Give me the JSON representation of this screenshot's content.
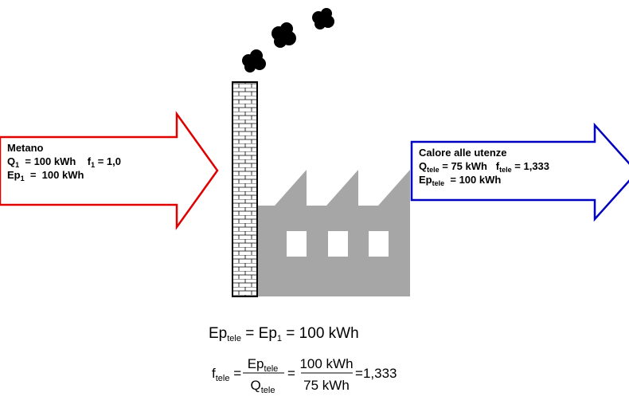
{
  "left_arrow": {
    "title": "Metano",
    "lines": [
      [
        {
          "base": "Q",
          "sub": "1"
        },
        {
          "base": "  = 100 kWh    f",
          "sub": "1"
        },
        {
          "base": " = 1,0"
        }
      ],
      [
        {
          "base": "Ep",
          "sub": "1"
        },
        {
          "base": "  =  100 kWh"
        }
      ]
    ]
  },
  "right_arrow": {
    "title": "Calore alle utenze",
    "lines": [
      [
        {
          "base": "Q",
          "sub": "tele"
        },
        {
          "base": " = 75 kWh   f",
          "sub": "tele"
        },
        {
          "base": " = 1,333"
        }
      ],
      [
        {
          "base": "Ep",
          "sub": "tele"
        },
        {
          "base": "  = 100 kWh"
        }
      ]
    ]
  },
  "formula1": [
    {
      "base": "Ep",
      "sub": "tele"
    },
    {
      "base": " = Ep",
      "sub": "1"
    },
    {
      "base": " = 100 kWh"
    }
  ],
  "formula2": {
    "lhs": {
      "base": "f",
      "sub": "tele"
    },
    "frac1": {
      "num": {
        "base": "Ep",
        "sub": "tele"
      },
      "den": {
        "base": "Q",
        "sub": "tele"
      }
    },
    "frac2": {
      "num": "100 kWh",
      "den": "75 kWh"
    },
    "result": "1,333"
  }
}
